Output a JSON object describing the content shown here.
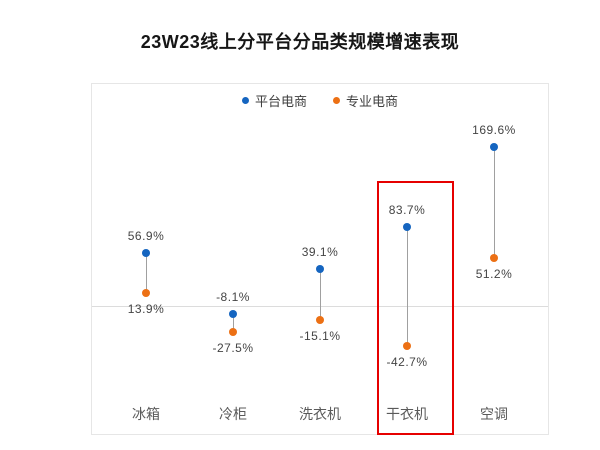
{
  "title": "23W23线上分平台分品类规模增速表现",
  "colors": {
    "platform_blue": "#1565c0",
    "professional_orange": "#ec7014",
    "connector_gray": "#a0a0a0",
    "zero_line_gray": "#dcdcdc",
    "plot_border_gray": "#e6e6e6",
    "highlight_red": "#e60000",
    "value_label_text": "#444444",
    "category_text": "#5a5a5a"
  },
  "legend": {
    "items": [
      {
        "label": "平台电商",
        "color": "#1565c0"
      },
      {
        "label": "专业电商",
        "color": "#ec7014"
      }
    ]
  },
  "chart_data": {
    "type": "scatter",
    "subtype": "dumbbell-dot",
    "title": "23W23线上分平台分品类规模增速表现",
    "categories": [
      "冰箱",
      "冷柜",
      "洗衣机",
      "干衣机",
      "空调"
    ],
    "series": [
      {
        "name": "平台电商",
        "color": "#1565c0",
        "values": [
          56.9,
          -8.1,
          39.1,
          83.7,
          169.6
        ],
        "labels": [
          "56.9%",
          "-8.1%",
          "39.1%",
          "83.7%",
          "169.6%"
        ]
      },
      {
        "name": "专业电商",
        "color": "#ec7014",
        "values": [
          13.9,
          -27.5,
          -15.1,
          -42.7,
          51.2
        ],
        "labels": [
          "13.9%",
          "-27.5%",
          "-15.1%",
          "-42.7%",
          "51.2%"
        ]
      }
    ],
    "unit": "%",
    "ylim": [
      -80,
      200
    ],
    "zero_line": true,
    "grid": false,
    "legend_position": "top-center",
    "highlighted_category": "干衣机",
    "annotation": "red rectangle around 干衣机 column"
  }
}
